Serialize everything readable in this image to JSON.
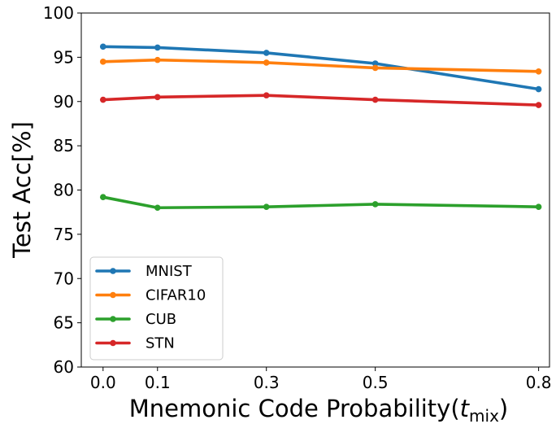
{
  "chart_data": {
    "type": "line",
    "x": [
      0.0,
      0.1,
      0.3,
      0.5,
      0.8
    ],
    "x_tick_labels": [
      "0.0",
      "0.1",
      "0.3",
      "0.5",
      "0.8"
    ],
    "xlim": [
      -0.04,
      0.82
    ],
    "ylim": [
      60,
      100
    ],
    "y_ticks": [
      60,
      65,
      70,
      75,
      80,
      85,
      90,
      95,
      100
    ],
    "xlabel_main": "Mnemonic Code Probability(",
    "xlabel_var": "t",
    "xlabel_sub": "mix",
    "xlabel_close": ")",
    "ylabel": "Test Acc[%]",
    "grid": false,
    "legend_position": "lower-left",
    "series": [
      {
        "name": "MNIST",
        "color": "#1f77b4",
        "values": [
          96.2,
          96.1,
          95.5,
          94.3,
          91.4
        ]
      },
      {
        "name": "CIFAR10",
        "color": "#ff7f0e",
        "values": [
          94.5,
          94.7,
          94.4,
          93.8,
          93.4
        ]
      },
      {
        "name": "CUB",
        "color": "#2ca02c",
        "values": [
          79.2,
          78.0,
          78.1,
          78.4,
          78.1
        ]
      },
      {
        "name": "STN",
        "color": "#d62728",
        "values": [
          90.2,
          90.5,
          90.7,
          90.2,
          89.6
        ]
      }
    ]
  }
}
